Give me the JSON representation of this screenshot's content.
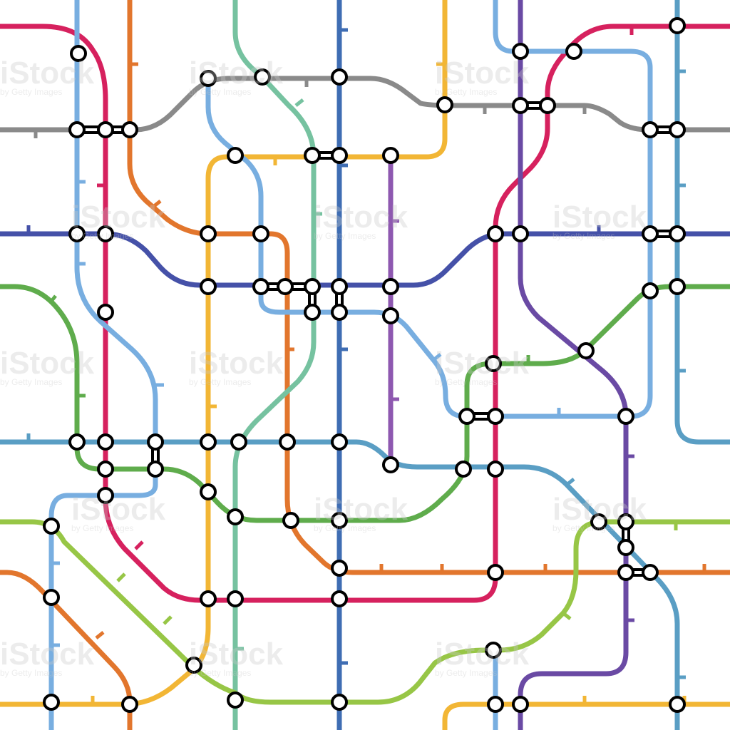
{
  "watermark": {
    "brand": "iStock",
    "byline": "by Getty Images"
  },
  "colors": {
    "crimson": "#d6215e",
    "orange": "#e2762d",
    "teal": "#76c2a0",
    "blue": "#3f6db3",
    "yellow": "#f2b635",
    "lightblue": "#78aee0",
    "purple": "#6a4aa4",
    "steelblue": "#5a9ec4",
    "gray": "#8a8a8a",
    "indigo": "#4551a8",
    "green": "#5fac4c",
    "lime": "#97c646",
    "violet": "#8e58b0"
  },
  "map": {
    "type": "seamless-metro-map-pattern",
    "station_style": "white-circle-black-outline"
  }
}
